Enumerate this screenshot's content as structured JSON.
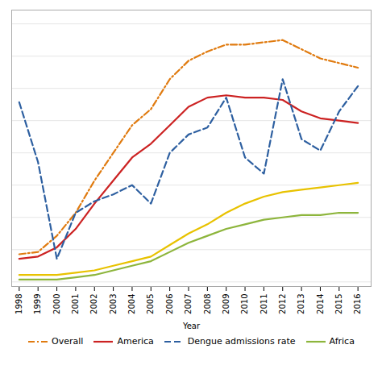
{
  "chart_data": {
    "type": "line",
    "x": [
      1998,
      1999,
      2000,
      2001,
      2002,
      2003,
      2004,
      2005,
      2006,
      2007,
      2008,
      2009,
      2010,
      2011,
      2012,
      2013,
      2014,
      2015,
      2016
    ],
    "series": [
      {
        "name": "Overall",
        "color": "#e07b10",
        "line_style": "dashdot",
        "values": [
          0.12,
          0.13,
          0.2,
          0.3,
          0.44,
          0.56,
          0.68,
          0.75,
          0.88,
          0.96,
          1.0,
          1.03,
          1.03,
          1.04,
          1.05,
          1.01,
          0.97,
          0.95,
          0.93
        ]
      },
      {
        "name": "America",
        "color": "#cc2222",
        "line_style": "solid",
        "values": [
          0.1,
          0.11,
          0.15,
          0.23,
          0.34,
          0.44,
          0.54,
          0.6,
          0.68,
          0.76,
          0.8,
          0.81,
          0.8,
          0.8,
          0.79,
          0.74,
          0.71,
          0.7,
          0.69
        ]
      },
      {
        "name": "Dengue admissions rate",
        "color": "#2d5fa0",
        "line_style": "dashed",
        "values": [
          0.78,
          0.52,
          0.1,
          0.3,
          0.35,
          0.38,
          0.42,
          0.34,
          0.56,
          0.64,
          0.67,
          0.8,
          0.54,
          0.47,
          0.88,
          0.62,
          0.57,
          0.74,
          0.85
        ]
      },
      {
        "color": "#e8c200",
        "line_style": "solid",
        "values": [
          0.03,
          0.03,
          0.03,
          0.04,
          0.05,
          0.07,
          0.09,
          0.11,
          0.16,
          0.21,
          0.25,
          0.3,
          0.34,
          0.37,
          0.39,
          0.4,
          0.41,
          0.42,
          0.43
        ]
      },
      {
        "name": "Africa",
        "color": "#8db53c",
        "line_style": "solid",
        "values": [
          0.01,
          0.01,
          0.01,
          0.02,
          0.03,
          0.05,
          0.07,
          0.09,
          0.13,
          0.17,
          0.2,
          0.23,
          0.25,
          0.27,
          0.28,
          0.29,
          0.29,
          0.3,
          0.3
        ]
      }
    ],
    "x_label": "Year",
    "xlim": [
      1997.6,
      2016.7
    ],
    "xticks": [
      1998,
      1999,
      2000,
      2001,
      2002,
      2003,
      2004,
      2005,
      2006,
      2007,
      2008,
      2009,
      2010,
      2011,
      2012,
      2013,
      2014,
      2015,
      2016
    ],
    "ylim": [
      -0.02,
      1.18
    ],
    "yticks": [
      0.0,
      0.14,
      0.28,
      0.42,
      0.56,
      0.7,
      0.84,
      0.98,
      1.12
    ],
    "grid": true,
    "tick_labels": "x",
    "legend": "bottom"
  }
}
